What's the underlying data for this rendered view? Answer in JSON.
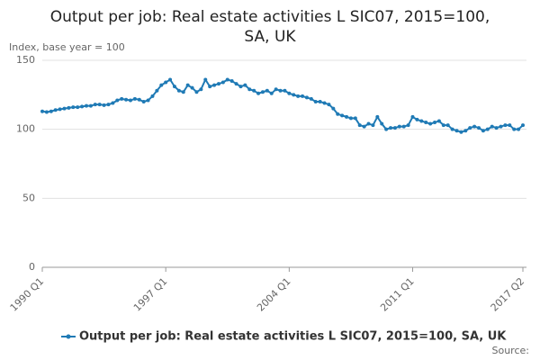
{
  "chart_data": {
    "type": "line",
    "title": "Output per job: Real estate activities L SIC07, 2015=100, SA, UK",
    "y_label": "Index, base year = 100",
    "source": "Source:",
    "categories": [
      "1990 Q1",
      null,
      null,
      null,
      null,
      null,
      null,
      null,
      null,
      null,
      null,
      null,
      null,
      null,
      null,
      null,
      null,
      null,
      null,
      null,
      null,
      null,
      null,
      null,
      null,
      null,
      null,
      null,
      "1997 Q1",
      null,
      null,
      null,
      null,
      null,
      null,
      null,
      null,
      null,
      null,
      null,
      null,
      null,
      null,
      null,
      null,
      null,
      null,
      null,
      null,
      null,
      null,
      null,
      null,
      null,
      null,
      null,
      "2004 Q1",
      null,
      null,
      null,
      null,
      null,
      null,
      null,
      null,
      null,
      null,
      null,
      null,
      null,
      null,
      null,
      null,
      null,
      null,
      null,
      null,
      null,
      null,
      null,
      null,
      null,
      null,
      null,
      "2011 Q1",
      null,
      null,
      null,
      null,
      null,
      null,
      null,
      null,
      null,
      null,
      null,
      null,
      null,
      null,
      null,
      null,
      null,
      null,
      null,
      null,
      null,
      null,
      null,
      null,
      "2017 Q2"
    ],
    "series": [
      {
        "name": "Output per job: Real estate activities L SIC07, 2015=100, SA, UK",
        "color": "#1f7ab5",
        "values": [
          113,
          112.5,
          113,
          114,
          114.5,
          115,
          115.5,
          116,
          116,
          116.5,
          117,
          117,
          118,
          118,
          117.5,
          118,
          119,
          121,
          122,
          121.5,
          121,
          122,
          121.5,
          120,
          121,
          124,
          128,
          132,
          134,
          136,
          131,
          128,
          127,
          132,
          130,
          127,
          129,
          136,
          131,
          132,
          133,
          134,
          136,
          135,
          133,
          131,
          132,
          129,
          128,
          126,
          127,
          128,
          126,
          129,
          128,
          128,
          126,
          125,
          124,
          124,
          123,
          122,
          120,
          120,
          119,
          118,
          115,
          111,
          110,
          109,
          108,
          108,
          103,
          102,
          104,
          103,
          109,
          104,
          100,
          101,
          101,
          102,
          102,
          103,
          109,
          107,
          106,
          105,
          104,
          105,
          106,
          103,
          103,
          100,
          99,
          98,
          99,
          101,
          102,
          101,
          99,
          100,
          102,
          101,
          102,
          103,
          103,
          100,
          100,
          103
        ]
      }
    ],
    "ylim": [
      0,
      150
    ],
    "yticks": [
      0,
      50,
      100,
      150
    ],
    "grid": true,
    "legend": "bottom"
  }
}
